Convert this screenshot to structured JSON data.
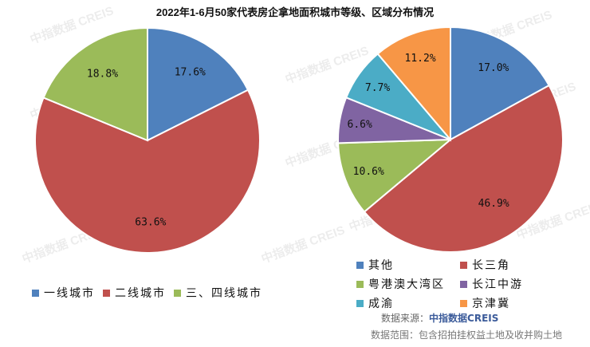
{
  "title": "2022年1-6月50家代表房企拿地面积城市等级、区域分布情况",
  "watermark": "中指数据 CREIS",
  "chart_data": [
    {
      "type": "pie",
      "name": "city-tier",
      "start": "top",
      "direction": "clockwise",
      "labels": [
        "一线城市",
        "二线城市",
        "三、四线城市"
      ],
      "values": [
        17.6,
        63.6,
        18.8
      ],
      "value_labels": [
        "17.6%",
        "63.6%",
        "18.8%"
      ],
      "colors": [
        "#4f81bd",
        "#c0504d",
        "#9bbb59"
      ],
      "legend_position": "bottom"
    },
    {
      "type": "pie",
      "name": "region",
      "start": "top",
      "direction": "clockwise",
      "labels": [
        "其他",
        "长三角",
        "粤港澳大湾区",
        "长江中游",
        "成渝",
        "京津冀"
      ],
      "values": [
        17.0,
        46.9,
        10.6,
        6.6,
        7.7,
        11.2
      ],
      "value_labels": [
        "17.0%",
        "46.9%",
        "10.6%",
        "6.6%",
        "7.7%",
        "11.2%"
      ],
      "colors": [
        "#4f81bd",
        "#c0504d",
        "#9bbb59",
        "#8064a2",
        "#4bacc6",
        "#f79646"
      ],
      "legend_position": "bottom"
    }
  ],
  "source": {
    "label": "数据来源：",
    "value": "中指数据CREIS"
  },
  "scope": "数据范围：包含招拍挂权益土地及收并购土地"
}
